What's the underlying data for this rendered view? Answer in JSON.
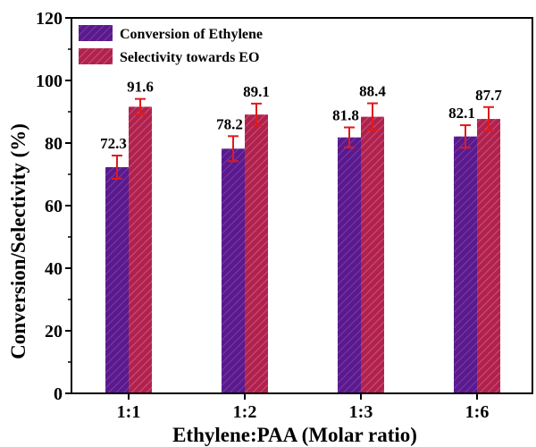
{
  "chart_data": {
    "type": "bar",
    "xlabel": "Ethylene:PAA (Molar ratio)",
    "ylabel": "Conversion/Selectivity (%)",
    "categories": [
      "1:1",
      "1:2",
      "1:3",
      "1:6"
    ],
    "ylim": [
      0,
      120
    ],
    "yticks": [
      0,
      20,
      40,
      60,
      80,
      100,
      120
    ],
    "grid": false,
    "legend_position": "top-left",
    "series": [
      {
        "name": "Conversion of Ethylene",
        "values": [
          72.3,
          78.2,
          81.8,
          82.1
        ],
        "value_labels": [
          "72.3",
          "78.2",
          "81.8",
          "82.1"
        ],
        "errors": [
          3.7,
          4.0,
          3.2,
          3.6
        ],
        "color": "#5a1a8c"
      },
      {
        "name": "Selectivity towards EO",
        "values": [
          91.6,
          89.1,
          88.4,
          87.7
        ],
        "value_labels": [
          "91.6",
          "89.1",
          "88.4",
          "87.7"
        ],
        "errors": [
          2.5,
          3.5,
          4.3,
          3.8
        ],
        "color": "#b0224e"
      }
    ],
    "error_bar_color": "#e01a1a"
  }
}
